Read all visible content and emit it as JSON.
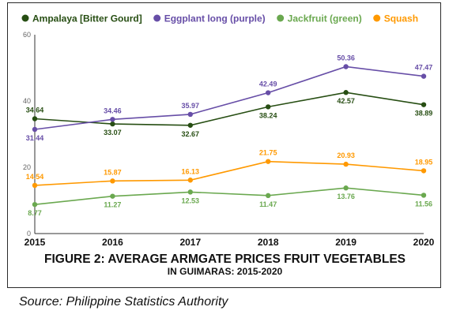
{
  "chart_data": {
    "type": "line",
    "title": "FIGURE 2: AVERAGE ARMGATE PRICES FRUIT VEGETABLES",
    "subtitle": "IN GUIMARAS: 2015-2020",
    "x": [
      "2015",
      "2016",
      "2017",
      "2018",
      "2019",
      "2020"
    ],
    "ylim": [
      0,
      60
    ],
    "yticks": [
      0,
      20,
      40,
      60
    ],
    "grid": false,
    "legend_position": "top",
    "series": [
      {
        "name": "Ampalaya [Bitter Gourd]",
        "color": "#274e13",
        "values": [
          34.64,
          33.07,
          32.67,
          38.24,
          42.57,
          38.89
        ],
        "labels": [
          "34.64",
          "33.07",
          "32.67",
          "38.24",
          "42.57",
          "38.89"
        ],
        "label_pos": [
          "above",
          "below",
          "below",
          "below",
          "below",
          "below"
        ]
      },
      {
        "name": "Eggplant long (purple)",
        "color": "#674ea7",
        "values": [
          31.44,
          34.46,
          35.97,
          42.49,
          50.36,
          47.47
        ],
        "labels": [
          "31.44",
          "34.46",
          "35.97",
          "42.49",
          "50.36",
          "47.47"
        ],
        "label_pos": [
          "below",
          "above",
          "above",
          "above",
          "above",
          "above"
        ]
      },
      {
        "name": "Jackfruit (green)",
        "color": "#6aa84f",
        "values": [
          8.77,
          11.27,
          12.53,
          11.47,
          13.76,
          11.56
        ],
        "labels": [
          "8.77",
          "11.27",
          "12.53",
          "11.47",
          "13.76",
          "11.56"
        ],
        "label_pos": [
          "below",
          "below",
          "below",
          "below",
          "below",
          "below"
        ]
      },
      {
        "name": "Squash",
        "color": "#ff9900",
        "values": [
          14.54,
          15.87,
          16.13,
          21.75,
          20.93,
          18.95
        ],
        "labels": [
          "14.54",
          "15.87",
          "16.13",
          "21.75",
          "20.93",
          "18.95"
        ],
        "label_pos": [
          "above",
          "above",
          "above",
          "above",
          "above",
          "above"
        ]
      }
    ]
  },
  "source": "Source: Philippine Statistics Authority"
}
